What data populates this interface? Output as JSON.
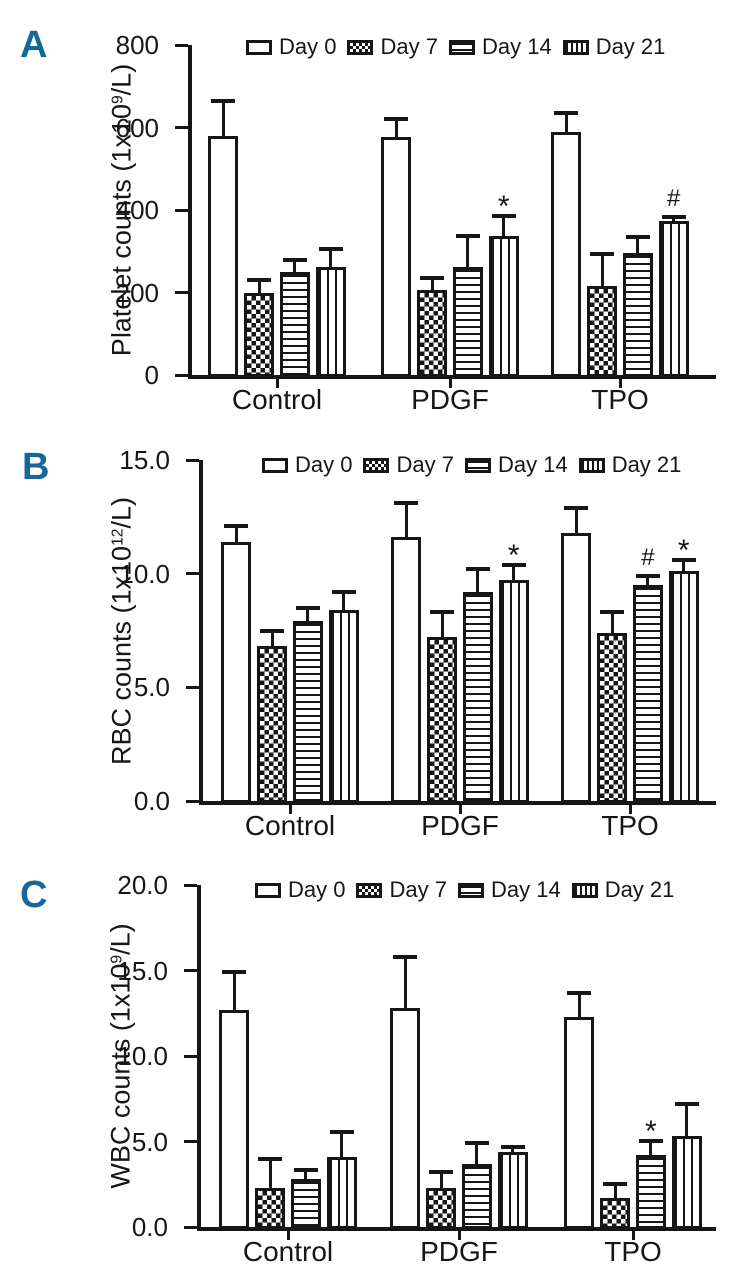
{
  "accent_color": "#17689a",
  "ink_color": "#161616",
  "panels": [
    {
      "letter": "A"
    },
    {
      "letter": "B"
    },
    {
      "letter": "C"
    }
  ],
  "legend_labels": [
    "Day 0",
    "Day 7",
    "Day 14",
    "Day 21"
  ],
  "chart_data": [
    {
      "panel": "A",
      "type": "bar",
      "title": "",
      "xlabel": "",
      "ylabel": "Platelet counts (1x10^9/L)",
      "ylabel_parts": {
        "prefix": "Platelet counts (1x10",
        "sup": "9",
        "suffix": "/L)"
      },
      "categories": [
        "Control",
        "PDGF",
        "TPO"
      ],
      "series": [
        {
          "name": "Day 0",
          "pattern": "open",
          "values": [
            580,
            578,
            588
          ],
          "errors": [
            85,
            42,
            47
          ]
        },
        {
          "name": "Day 7",
          "pattern": "checker",
          "values": [
            200,
            205,
            216
          ],
          "errors": [
            30,
            30,
            77
          ]
        },
        {
          "name": "Day 14",
          "pattern": "hlines",
          "values": [
            250,
            263,
            296
          ],
          "errors": [
            28,
            73,
            38
          ]
        },
        {
          "name": "Day 21",
          "pattern": "vlines",
          "values": [
            262,
            337,
            374
          ],
          "errors": [
            43,
            48,
            9
          ]
        }
      ],
      "annotations": [
        {
          "category": "PDGF",
          "series": "Day 21",
          "symbol": "*"
        },
        {
          "category": "TPO",
          "series": "Day 21",
          "symbol": "#"
        }
      ],
      "ylim": [
        0,
        800
      ],
      "yticks": [
        {
          "value": 0,
          "label": "0"
        },
        {
          "value": 200,
          "label": "200"
        },
        {
          "value": 400,
          "label": "400"
        },
        {
          "value": 600,
          "label": "600"
        },
        {
          "value": 800,
          "label": "800"
        }
      ],
      "grid": false,
      "legend_position": "top",
      "error_bars": "upper"
    },
    {
      "panel": "B",
      "type": "bar",
      "title": "",
      "xlabel": "",
      "ylabel": "RBC counts (1x10^12/L)",
      "ylabel_parts": {
        "prefix": "RBC counts (1x10",
        "sup": "12",
        "suffix": "/L)"
      },
      "categories": [
        "Control",
        "PDGF",
        "TPO"
      ],
      "series": [
        {
          "name": "Day 0",
          "pattern": "open",
          "values": [
            11.4,
            11.6,
            11.8
          ],
          "errors": [
            0.7,
            1.5,
            1.1
          ]
        },
        {
          "name": "Day 7",
          "pattern": "checker",
          "values": [
            6.8,
            7.2,
            7.4
          ],
          "errors": [
            0.7,
            1.1,
            0.9
          ]
        },
        {
          "name": "Day 14",
          "pattern": "hlines",
          "values": [
            7.9,
            9.2,
            9.5
          ],
          "errors": [
            0.6,
            1.0,
            0.4
          ]
        },
        {
          "name": "Day 21",
          "pattern": "vlines",
          "values": [
            8.4,
            9.7,
            10.1
          ],
          "errors": [
            0.8,
            0.7,
            0.5
          ]
        }
      ],
      "annotations": [
        {
          "category": "PDGF",
          "series": "Day 21",
          "symbol": "*"
        },
        {
          "category": "TPO",
          "series": "Day 14",
          "symbol": "#"
        },
        {
          "category": "TPO",
          "series": "Day 21",
          "symbol": "*"
        }
      ],
      "ylim": [
        0,
        15
      ],
      "yticks": [
        {
          "value": 0,
          "label": "0.0"
        },
        {
          "value": 5,
          "label": "5.0"
        },
        {
          "value": 10,
          "label": "10.0"
        },
        {
          "value": 15,
          "label": "15.0"
        }
      ],
      "grid": false,
      "legend_position": "top",
      "error_bars": "upper"
    },
    {
      "panel": "C",
      "type": "bar",
      "title": "",
      "xlabel": "",
      "ylabel": "WBC counts (1x10^9/L)",
      "ylabel_parts": {
        "prefix": "WBC counts (1x10",
        "sup": "9",
        "suffix": "/L)"
      },
      "categories": [
        "Control",
        "PDGF",
        "TPO"
      ],
      "series": [
        {
          "name": "Day 0",
          "pattern": "open",
          "values": [
            12.7,
            12.8,
            12.3
          ],
          "errors": [
            2.2,
            3.0,
            1.4
          ]
        },
        {
          "name": "Day 7",
          "pattern": "checker",
          "values": [
            2.3,
            2.3,
            1.7
          ],
          "errors": [
            1.7,
            0.9,
            0.8
          ]
        },
        {
          "name": "Day 14",
          "pattern": "hlines",
          "values": [
            2.8,
            3.7,
            4.2
          ],
          "errors": [
            0.55,
            1.2,
            0.85
          ]
        },
        {
          "name": "Day 21",
          "pattern": "vlines",
          "values": [
            4.1,
            4.4,
            5.3
          ],
          "errors": [
            1.45,
            0.3,
            1.9
          ]
        }
      ],
      "annotations": [
        {
          "category": "TPO",
          "series": "Day 14",
          "symbol": "*"
        }
      ],
      "ylim": [
        0,
        20
      ],
      "yticks": [
        {
          "value": 0,
          "label": "0.0"
        },
        {
          "value": 5,
          "label": "5.0"
        },
        {
          "value": 10,
          "label": "10.0"
        },
        {
          "value": 15,
          "label": "15.0"
        },
        {
          "value": 20,
          "label": "20.0"
        }
      ],
      "grid": false,
      "legend_position": "top",
      "error_bars": "upper"
    }
  ]
}
